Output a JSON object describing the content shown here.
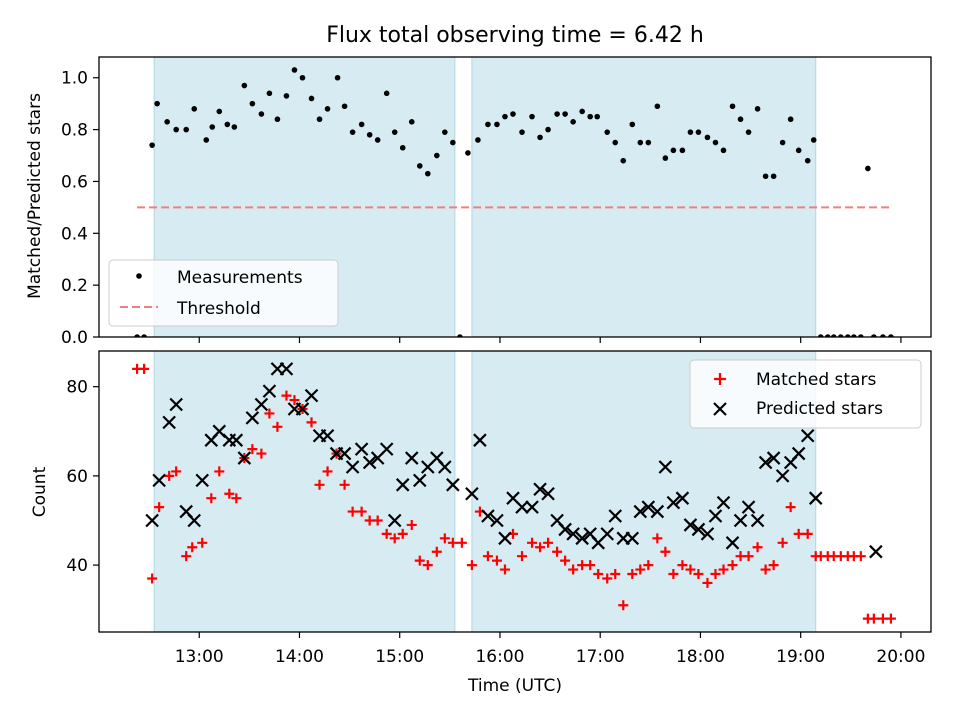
{
  "chart_data": [
    {
      "type": "scatter",
      "title": "Flux total observing time = 6.42 h",
      "xlabel": "",
      "ylabel": "Matched/Predicted stars",
      "ylim": [
        0,
        1.08
      ],
      "yticks": [
        "0.0",
        "0.2",
        "0.4",
        "0.6",
        "0.8",
        "1.0"
      ],
      "xlim_hours": [
        12.0,
        20.3
      ],
      "observing_windows_hours": [
        [
          12.55,
          15.55
        ],
        [
          15.72,
          19.15
        ]
      ],
      "threshold": 0.5,
      "legend_position": "lower-left",
      "series": [
        {
          "name": "Measurements",
          "marker": "dot",
          "color": "#000000",
          "x": [
            12.38,
            12.45,
            12.53,
            12.58,
            12.68,
            12.77,
            12.87,
            12.95,
            13.07,
            13.13,
            13.2,
            13.28,
            13.35,
            13.45,
            13.53,
            13.62,
            13.7,
            13.78,
            13.87,
            13.95,
            14.03,
            14.12,
            14.2,
            14.28,
            14.38,
            14.45,
            14.53,
            14.62,
            14.7,
            14.78,
            14.87,
            14.95,
            15.03,
            15.12,
            15.2,
            15.28,
            15.37,
            15.45,
            15.53,
            15.6,
            15.68,
            15.78,
            15.88,
            15.97,
            16.05,
            16.13,
            16.22,
            16.32,
            16.4,
            16.48,
            16.57,
            16.65,
            16.73,
            16.82,
            16.9,
            16.97,
            17.07,
            17.15,
            17.23,
            17.32,
            17.4,
            17.48,
            17.57,
            17.65,
            17.73,
            17.82,
            17.9,
            17.98,
            18.07,
            18.15,
            18.23,
            18.32,
            18.4,
            18.48,
            18.57,
            18.65,
            18.73,
            18.82,
            18.9,
            18.98,
            19.07,
            19.13,
            19.2,
            19.27,
            19.33,
            19.4,
            19.47,
            19.53,
            19.6,
            19.67,
            19.73,
            19.82,
            19.9
          ],
          "y": [
            0.0,
            0.0,
            0.74,
            0.9,
            0.83,
            0.8,
            0.8,
            0.88,
            0.76,
            0.81,
            0.87,
            0.82,
            0.81,
            0.97,
            0.9,
            0.86,
            0.94,
            0.84,
            0.93,
            1.03,
            1.0,
            0.92,
            0.84,
            0.88,
            1.0,
            0.89,
            0.79,
            0.82,
            0.78,
            0.76,
            0.94,
            0.79,
            0.73,
            0.83,
            0.66,
            0.63,
            0.7,
            0.79,
            0.75,
            0.0,
            0.71,
            0.76,
            0.82,
            0.82,
            0.85,
            0.86,
            0.79,
            0.85,
            0.77,
            0.8,
            0.86,
            0.86,
            0.83,
            0.87,
            0.85,
            0.85,
            0.79,
            0.75,
            0.68,
            0.82,
            0.75,
            0.75,
            0.89,
            0.69,
            0.72,
            0.72,
            0.79,
            0.79,
            0.77,
            0.75,
            0.72,
            0.89,
            0.84,
            0.79,
            0.88,
            0.62,
            0.62,
            0.75,
            0.84,
            0.72,
            0.68,
            0.76,
            0.0,
            0.0,
            0.0,
            0.0,
            0.0,
            0.0,
            0.0,
            0.65,
            0.0,
            0.0,
            0.0
          ]
        },
        {
          "name": "Threshold",
          "marker": "dashed-line",
          "color": "#f08080",
          "x": [
            12.38,
            19.9
          ],
          "y": [
            0.5,
            0.5
          ]
        }
      ]
    },
    {
      "type": "scatter",
      "title": "",
      "xlabel": "Time (UTC)",
      "ylabel": "Count",
      "ylim": [
        25,
        88
      ],
      "yticks": [
        "40",
        "60",
        "80"
      ],
      "xticks": [
        "13:00",
        "14:00",
        "15:00",
        "16:00",
        "17:00",
        "18:00",
        "19:00",
        "20:00"
      ],
      "xlim_hours": [
        12.0,
        20.3
      ],
      "observing_windows_hours": [
        [
          12.55,
          15.55
        ],
        [
          15.72,
          19.15
        ]
      ],
      "legend_position": "upper-right",
      "series": [
        {
          "name": "Matched stars",
          "marker": "plus",
          "color": "#ff0000",
          "x": [
            12.38,
            12.45,
            12.53,
            12.6,
            12.7,
            12.77,
            12.87,
            12.93,
            13.03,
            13.12,
            13.2,
            13.3,
            13.37,
            13.45,
            13.53,
            13.62,
            13.7,
            13.78,
            13.87,
            13.95,
            14.03,
            14.12,
            14.2,
            14.28,
            14.37,
            14.45,
            14.53,
            14.62,
            14.7,
            14.78,
            14.87,
            14.95,
            15.03,
            15.12,
            15.2,
            15.28,
            15.37,
            15.45,
            15.53,
            15.62,
            15.72,
            15.8,
            15.88,
            15.97,
            16.05,
            16.13,
            16.22,
            16.32,
            16.4,
            16.48,
            16.57,
            16.65,
            16.73,
            16.82,
            16.9,
            16.98,
            17.07,
            17.15,
            17.23,
            17.32,
            17.4,
            17.48,
            17.57,
            17.65,
            17.73,
            17.82,
            17.9,
            17.98,
            18.07,
            18.15,
            18.23,
            18.32,
            18.4,
            18.48,
            18.57,
            18.65,
            18.73,
            18.82,
            18.9,
            18.98,
            19.07,
            19.15,
            19.2,
            19.27,
            19.33,
            19.4,
            19.47,
            19.53,
            19.6,
            19.67,
            19.73,
            19.82,
            19.9
          ],
          "y": [
            84,
            84,
            37,
            53,
            60,
            61,
            42,
            44,
            45,
            55,
            61,
            56,
            55,
            64,
            66,
            65,
            74,
            71,
            78,
            77,
            75,
            72,
            58,
            61,
            65,
            58,
            52,
            52,
            50,
            50,
            47,
            46,
            47,
            49,
            41,
            40,
            43,
            46,
            45,
            45,
            40,
            52,
            42,
            41,
            39,
            47,
            42,
            45,
            44,
            45,
            43,
            41,
            39,
            40,
            40,
            38,
            37,
            38,
            31,
            38,
            39,
            40,
            46,
            43,
            38,
            40,
            39,
            38,
            36,
            38,
            39,
            40,
            42,
            42,
            44,
            39,
            40,
            45,
            53,
            47,
            47,
            42,
            42,
            42,
            42,
            42,
            42,
            42,
            42,
            28,
            28,
            28,
            28
          ]
        },
        {
          "name": "Predicted stars",
          "marker": "x",
          "color": "#000000",
          "x": [
            12.53,
            12.6,
            12.7,
            12.77,
            12.87,
            12.95,
            13.03,
            13.12,
            13.2,
            13.3,
            13.37,
            13.45,
            13.53,
            13.62,
            13.7,
            13.78,
            13.87,
            13.95,
            14.03,
            14.12,
            14.2,
            14.28,
            14.37,
            14.45,
            14.53,
            14.62,
            14.7,
            14.78,
            14.87,
            14.95,
            15.03,
            15.12,
            15.2,
            15.28,
            15.37,
            15.45,
            15.53,
            15.72,
            15.8,
            15.88,
            15.97,
            16.05,
            16.13,
            16.22,
            16.32,
            16.4,
            16.48,
            16.57,
            16.65,
            16.73,
            16.82,
            16.9,
            16.98,
            17.07,
            17.15,
            17.23,
            17.32,
            17.4,
            17.48,
            17.57,
            17.65,
            17.73,
            17.82,
            17.9,
            17.98,
            18.07,
            18.15,
            18.23,
            18.32,
            18.4,
            18.48,
            18.57,
            18.65,
            18.73,
            18.82,
            18.9,
            18.98,
            19.07,
            19.15,
            19.75
          ],
          "y": [
            50,
            59,
            72,
            76,
            52,
            50,
            59,
            68,
            70,
            68,
            68,
            64,
            73,
            76,
            79,
            84,
            84,
            75,
            75,
            78,
            69,
            69,
            65,
            65,
            62,
            66,
            63,
            64,
            66,
            50,
            58,
            64,
            59,
            62,
            64,
            62,
            58,
            56,
            68,
            51,
            50,
            46,
            55,
            53,
            53,
            57,
            56,
            50,
            48,
            47,
            46,
            47,
            45,
            47,
            51,
            46,
            46,
            52,
            53,
            52,
            62,
            54,
            55,
            49,
            48,
            47,
            51,
            54,
            45,
            50,
            53,
            50,
            63,
            64,
            60,
            63,
            65,
            69,
            55,
            43
          ]
        }
      ]
    }
  ]
}
